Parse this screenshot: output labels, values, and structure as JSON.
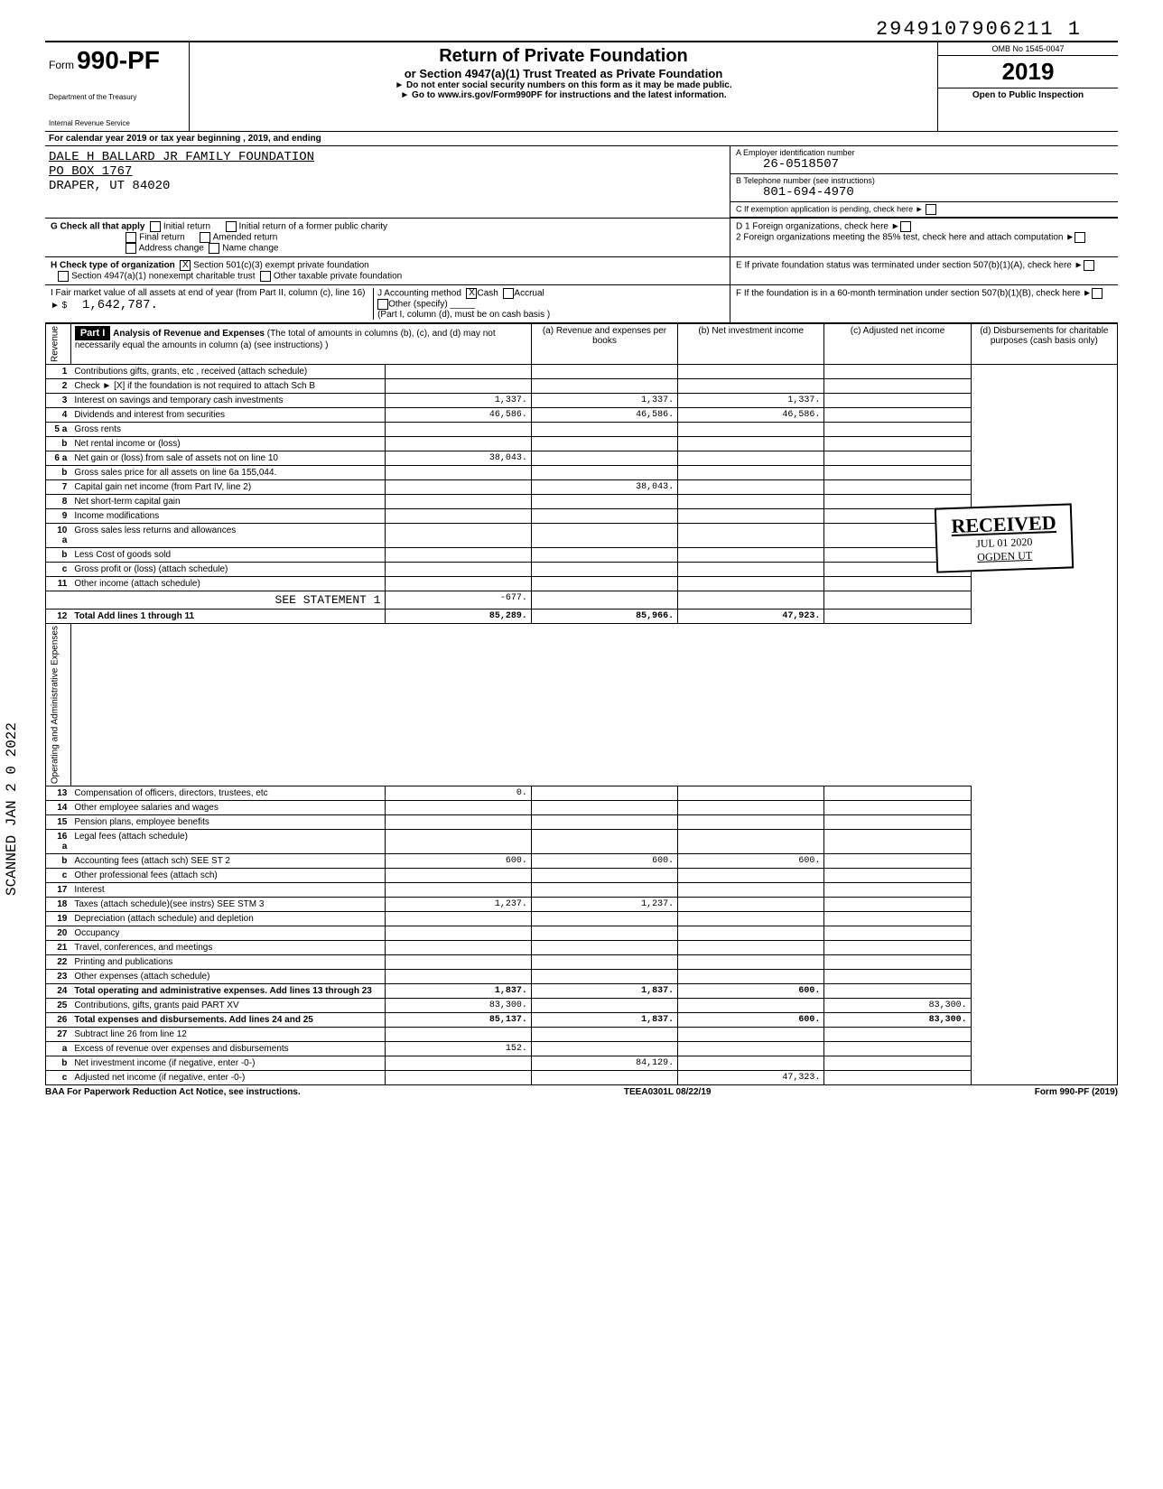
{
  "topNumber": "2949107906211 1",
  "form": {
    "prefix": "Form",
    "number": "990-PF",
    "dept": "Department of the Treasury",
    "irs": "Internal Revenue Service"
  },
  "title": {
    "main": "Return of Private Foundation",
    "sub": "or Section 4947(a)(1) Trust Treated as Private Foundation",
    "note1": "► Do not enter social security numbers on this form as it may be made public.",
    "note2": "► Go to www.irs.gov/Form990PF for instructions and the latest information."
  },
  "omb": {
    "number": "OMB No 1545-0047",
    "year": "2019",
    "inspection": "Open to Public Inspection"
  },
  "calYear": "For calendar year 2019 or tax year beginning                    , 2019, and ending",
  "org": {
    "name": "DALE H BALLARD JR FAMILY FOUNDATION",
    "addr1": "PO BOX 1767",
    "addr2": "DRAPER, UT 84020"
  },
  "boxA": {
    "label": "A   Employer identification number",
    "value": "26-0518507"
  },
  "boxB": {
    "label": "B   Telephone number (see instructions)",
    "value": "801-694-4970"
  },
  "boxC": "C   If exemption application is pending, check here  ►",
  "boxD1": "D  1 Foreign organizations, check here",
  "boxD2": "2 Foreign organizations meeting the 85% test, check here and attach computation",
  "boxE": "E   If private foundation status was terminated under section 507(b)(1)(A), check here",
  "boxF": "F   If the foundation is in a 60-month termination under section 507(b)(1)(B), check here",
  "checkG": {
    "label": "G   Check all that apply",
    "opts": [
      "Initial return",
      "Final return",
      "Address change",
      "Initial return of a former public charity",
      "Amended return",
      "Name change"
    ]
  },
  "checkH": {
    "label": "H   Check type of organization",
    "opt1": "Section 501(c)(3) exempt private foundation",
    "opt2": "Section 4947(a)(1) nonexempt charitable trust",
    "opt3": "Other taxable private foundation"
  },
  "lineI": {
    "label": "I   Fair market value of all assets at end of year (from Part II, column (c), line 16)",
    "value": "1,642,787."
  },
  "lineJ": {
    "label": "J   Accounting method",
    "opts": [
      "Cash",
      "Accrual",
      "Other (specify)"
    ],
    "note": "(Part I, column (d), must be on cash basis )"
  },
  "part1": {
    "header": "Part I",
    "title": "Analysis of Revenue and Expenses",
    "note": "(The total of amounts in columns (b), (c), and (d) may not necessarily equal the amounts in column (a) (see instructions) )"
  },
  "cols": {
    "a": "(a) Revenue and expenses per books",
    "b": "(b) Net investment income",
    "c": "(c) Adjusted net income",
    "d": "(d) Disbursements for charitable purposes (cash basis only)"
  },
  "sideRevenue": "Revenue",
  "sideExpenses": "Operating and Administrative Expenses",
  "rows": [
    {
      "n": "1",
      "desc": "Contributions gifts, grants, etc , received (attach schedule)",
      "a": "",
      "b": "",
      "c": "",
      "d": ""
    },
    {
      "n": "2",
      "desc": "Check ► [X] if the foundation is not required to attach Sch B",
      "a": "",
      "b": "",
      "c": "",
      "d": ""
    },
    {
      "n": "3",
      "desc": "Interest on savings and temporary cash investments",
      "a": "1,337.",
      "b": "1,337.",
      "c": "1,337.",
      "d": ""
    },
    {
      "n": "4",
      "desc": "Dividends and interest from securities",
      "a": "46,586.",
      "b": "46,586.",
      "c": "46,586.",
      "d": ""
    },
    {
      "n": "5 a",
      "desc": "Gross rents",
      "a": "",
      "b": "",
      "c": "",
      "d": ""
    },
    {
      "n": "b",
      "desc": "Net rental income or (loss)",
      "a": "",
      "b": "",
      "c": "",
      "d": ""
    },
    {
      "n": "6 a",
      "desc": "Net gain or (loss) from sale of assets not on line 10",
      "a": "38,043.",
      "b": "",
      "c": "",
      "d": ""
    },
    {
      "n": "b",
      "desc": "Gross sales price for all assets on line 6a     155,044.",
      "a": "",
      "b": "",
      "c": "",
      "d": ""
    },
    {
      "n": "7",
      "desc": "Capital gain net income (from Part IV, line 2)",
      "a": "",
      "b": "38,043.",
      "c": "",
      "d": ""
    },
    {
      "n": "8",
      "desc": "Net short-term capital gain",
      "a": "",
      "b": "",
      "c": "",
      "d": ""
    },
    {
      "n": "9",
      "desc": "Income modifications",
      "a": "",
      "b": "",
      "c": "",
      "d": ""
    },
    {
      "n": "10 a",
      "desc": "Gross sales less returns and allowances",
      "a": "",
      "b": "",
      "c": "",
      "d": ""
    },
    {
      "n": "b",
      "desc": "Less Cost of goods sold",
      "a": "",
      "b": "",
      "c": "",
      "d": ""
    },
    {
      "n": "c",
      "desc": "Gross profit or (loss) (attach schedule)",
      "a": "",
      "b": "",
      "c": "",
      "d": ""
    },
    {
      "n": "11",
      "desc": "Other income (attach schedule)",
      "a": "",
      "b": "",
      "c": "",
      "d": ""
    },
    {
      "n": "",
      "desc": "SEE STATEMENT 1",
      "a": "-677.",
      "b": "",
      "c": "",
      "d": "",
      "mono": true
    },
    {
      "n": "12",
      "desc": "Total Add lines 1 through 11",
      "a": "85,289.",
      "b": "85,966.",
      "c": "47,923.",
      "d": "",
      "bold": true
    },
    {
      "n": "13",
      "desc": "Compensation of officers, directors, trustees, etc",
      "a": "0.",
      "b": "",
      "c": "",
      "d": ""
    },
    {
      "n": "14",
      "desc": "Other employee salaries and wages",
      "a": "",
      "b": "",
      "c": "",
      "d": ""
    },
    {
      "n": "15",
      "desc": "Pension plans, employee benefits",
      "a": "",
      "b": "",
      "c": "",
      "d": ""
    },
    {
      "n": "16 a",
      "desc": "Legal fees (attach schedule)",
      "a": "",
      "b": "",
      "c": "",
      "d": ""
    },
    {
      "n": "b",
      "desc": "Accounting fees (attach sch)    SEE ST 2",
      "a": "600.",
      "b": "600.",
      "c": "600.",
      "d": ""
    },
    {
      "n": "c",
      "desc": "Other professional fees (attach sch)",
      "a": "",
      "b": "",
      "c": "",
      "d": ""
    },
    {
      "n": "17",
      "desc": "Interest",
      "a": "",
      "b": "",
      "c": "",
      "d": ""
    },
    {
      "n": "18",
      "desc": "Taxes (attach schedule)(see instrs)    SEE STM 3",
      "a": "1,237.",
      "b": "1,237.",
      "c": "",
      "d": ""
    },
    {
      "n": "19",
      "desc": "Depreciation (attach schedule) and depletion",
      "a": "",
      "b": "",
      "c": "",
      "d": ""
    },
    {
      "n": "20",
      "desc": "Occupancy",
      "a": "",
      "b": "",
      "c": "",
      "d": ""
    },
    {
      "n": "21",
      "desc": "Travel, conferences, and meetings",
      "a": "",
      "b": "",
      "c": "",
      "d": ""
    },
    {
      "n": "22",
      "desc": "Printing and publications",
      "a": "",
      "b": "",
      "c": "",
      "d": ""
    },
    {
      "n": "23",
      "desc": "Other expenses (attach schedule)",
      "a": "",
      "b": "",
      "c": "",
      "d": ""
    },
    {
      "n": "24",
      "desc": "Total operating and administrative expenses. Add lines 13 through 23",
      "a": "1,837.",
      "b": "1,837.",
      "c": "600.",
      "d": "",
      "bold": true
    },
    {
      "n": "25",
      "desc": "Contributions, gifts, grants paid     PART XV",
      "a": "83,300.",
      "b": "",
      "c": "",
      "d": "83,300."
    },
    {
      "n": "26",
      "desc": "Total expenses and disbursements. Add lines 24 and 25",
      "a": "85,137.",
      "b": "1,837.",
      "c": "600.",
      "d": "83,300.",
      "bold": true
    },
    {
      "n": "27",
      "desc": "Subtract line 26 from line 12",
      "a": "",
      "b": "",
      "c": "",
      "d": ""
    },
    {
      "n": "a",
      "desc": "Excess of revenue over expenses and disbursements",
      "a": "152.",
      "b": "",
      "c": "",
      "d": ""
    },
    {
      "n": "b",
      "desc": "Net investment income (if negative, enter -0-)",
      "a": "",
      "b": "84,129.",
      "c": "",
      "d": ""
    },
    {
      "n": "c",
      "desc": "Adjusted net income (if negative, enter -0-)",
      "a": "",
      "b": "",
      "c": "47,323.",
      "d": ""
    }
  ],
  "received": {
    "title": "RECEIVED",
    "date": "JUL 01 2020",
    "loc": "OGDEN UT"
  },
  "scanned": "SCANNED JAN 2 0 2022",
  "footer": {
    "left": "BAA For Paperwork Reduction Act Notice, see instructions.",
    "mid": "TEEA0301L 08/22/19",
    "right": "Form 990-PF (2019)"
  }
}
